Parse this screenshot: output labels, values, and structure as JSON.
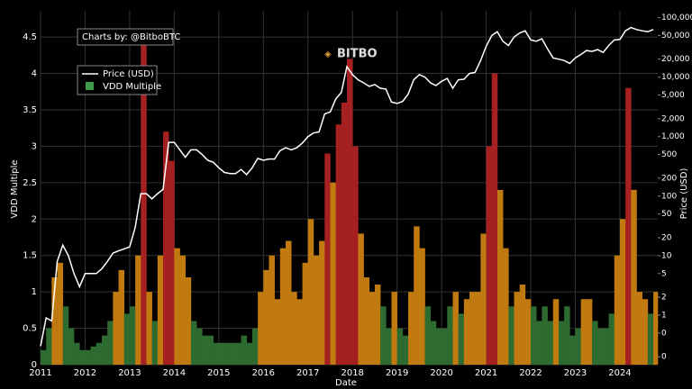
{
  "chart_data": {
    "type": "bar-line",
    "annotations": [
      "Charts by: @BitboBTC",
      "BITBO"
    ],
    "xlabel": "Date",
    "ylabel": "VDD Multiple",
    "y2label": "Price (USD)",
    "x": [
      2011,
      2011.125,
      2011.25,
      2011.375,
      2011.5,
      2011.625,
      2011.75,
      2011.875,
      2012,
      2012.125,
      2012.25,
      2012.375,
      2012.5,
      2012.625,
      2012.75,
      2012.875,
      2013,
      2013.125,
      2013.25,
      2013.375,
      2013.5,
      2013.625,
      2013.75,
      2013.875,
      2014,
      2014.125,
      2014.25,
      2014.375,
      2014.5,
      2014.625,
      2014.75,
      2014.875,
      2015,
      2015.125,
      2015.25,
      2015.375,
      2015.5,
      2015.625,
      2015.75,
      2015.875,
      2016,
      2016.125,
      2016.25,
      2016.375,
      2016.5,
      2016.625,
      2016.75,
      2016.875,
      2017,
      2017.125,
      2017.25,
      2017.375,
      2017.5,
      2017.625,
      2017.75,
      2017.875,
      2018,
      2018.125,
      2018.25,
      2018.375,
      2018.5,
      2018.625,
      2018.75,
      2018.875,
      2019,
      2019.125,
      2019.25,
      2019.375,
      2019.5,
      2019.625,
      2019.75,
      2019.875,
      2020,
      2020.125,
      2020.25,
      2020.375,
      2020.5,
      2020.625,
      2020.75,
      2020.875,
      2021,
      2021.125,
      2021.25,
      2021.375,
      2021.5,
      2021.625,
      2021.75,
      2021.875,
      2022,
      2022.125,
      2022.25,
      2022.375,
      2022.5,
      2022.625,
      2022.75,
      2022.875,
      2023,
      2023.125,
      2023.25,
      2023.375,
      2023.5,
      2023.625,
      2023.75,
      2023.875,
      2024,
      2024.125,
      2024.25,
      2024.375,
      2024.5,
      2024.625,
      2024.75
    ],
    "series": [
      {
        "name": "VDD Multiple",
        "color": "#3c9a48",
        "values": [
          0.2,
          0.5,
          1.2,
          1.4,
          0.8,
          0.5,
          0.3,
          0.2,
          0.2,
          0.25,
          0.3,
          0.4,
          0.6,
          1.0,
          1.3,
          0.7,
          0.8,
          1.5,
          4.6,
          1.0,
          0.6,
          1.5,
          3.2,
          2.8,
          1.6,
          1.5,
          1.2,
          0.6,
          0.5,
          0.4,
          0.4,
          0.3,
          0.3,
          0.3,
          0.3,
          0.3,
          0.4,
          0.3,
          0.5,
          1.0,
          1.3,
          1.5,
          0.9,
          1.6,
          1.7,
          1.0,
          0.9,
          1.4,
          2.0,
          1.5,
          1.7,
          2.9,
          2.5,
          3.3,
          3.6,
          4.2,
          3.0,
          1.8,
          1.2,
          1.0,
          1.1,
          0.8,
          0.5,
          1.0,
          0.5,
          0.4,
          1.0,
          1.9,
          1.6,
          0.8,
          0.6,
          0.5,
          0.5,
          0.8,
          1.0,
          0.7,
          0.9,
          1.0,
          1.0,
          1.8,
          3.0,
          4.0,
          2.4,
          1.6,
          0.8,
          1.0,
          1.1,
          0.9,
          0.8,
          0.6,
          0.8,
          0.6,
          0.9,
          0.6,
          0.8,
          0.4,
          0.5,
          0.9,
          0.9,
          0.6,
          0.5,
          0.5,
          0.7,
          1.5,
          2.0,
          3.8,
          2.4,
          1.0,
          0.9,
          0.7,
          1.0
        ],
        "colors": [
          "#2e6b30",
          "#2e6b30",
          "#c07a10",
          "#c07a10",
          "#2e6b30",
          "#2e6b30",
          "#2e6b30",
          "#2e6b30",
          "#2e6b30",
          "#2e6b30",
          "#2e6b30",
          "#2e6b30",
          "#2e6b30",
          "#c07a10",
          "#c07a10",
          "#2e6b30",
          "#2e6b30",
          "#c07a10",
          "#a52020",
          "#c07a10",
          "#2e6b30",
          "#c07a10",
          "#a52020",
          "#a52020",
          "#c07a10",
          "#c07a10",
          "#c07a10",
          "#2e6b30",
          "#2e6b30",
          "#2e6b30",
          "#2e6b30",
          "#2e6b30",
          "#2e6b30",
          "#2e6b30",
          "#2e6b30",
          "#2e6b30",
          "#2e6b30",
          "#2e6b30",
          "#2e6b30",
          "#c07a10",
          "#c07a10",
          "#c07a10",
          "#c07a10",
          "#c07a10",
          "#c07a10",
          "#c07a10",
          "#c07a10",
          "#c07a10",
          "#c07a10",
          "#c07a10",
          "#c07a10",
          "#a52020",
          "#c07a10",
          "#a52020",
          "#a52020",
          "#a52020",
          "#a52020",
          "#c07a10",
          "#c07a10",
          "#c07a10",
          "#c07a10",
          "#2e6b30",
          "#2e6b30",
          "#c07a10",
          "#2e6b30",
          "#2e6b30",
          "#c07a10",
          "#c07a10",
          "#c07a10",
          "#2e6b30",
          "#2e6b30",
          "#2e6b30",
          "#2e6b30",
          "#2e6b30",
          "#c07a10",
          "#2e6b30",
          "#c07a10",
          "#c07a10",
          "#c07a10",
          "#c07a10",
          "#a52020",
          "#a52020",
          "#c07a10",
          "#c07a10",
          "#2e6b30",
          "#c07a10",
          "#c07a10",
          "#c07a10",
          "#2e6b30",
          "#2e6b30",
          "#2e6b30",
          "#2e6b30",
          "#c07a10",
          "#2e6b30",
          "#2e6b30",
          "#2e6b30",
          "#2e6b30",
          "#c07a10",
          "#c07a10",
          "#2e6b30",
          "#2e6b30",
          "#2e6b30",
          "#2e6b30",
          "#c07a10",
          "#c07a10",
          "#a52020",
          "#c07a10",
          "#c07a10",
          "#c07a10",
          "#2e6b30",
          "#c07a10"
        ]
      },
      {
        "name": "Price (USD)",
        "color": "#ffffff",
        "axis": "y2",
        "values": [
          0.3,
          0.9,
          0.8,
          8,
          15,
          10,
          5,
          3,
          5,
          5,
          5,
          6,
          8,
          11,
          12,
          13,
          14,
          30,
          110,
          110,
          90,
          110,
          130,
          800,
          800,
          600,
          450,
          600,
          600,
          500,
          400,
          370,
          300,
          250,
          240,
          240,
          280,
          230,
          300,
          430,
          400,
          420,
          420,
          580,
          650,
          600,
          650,
          780,
          1000,
          1150,
          1200,
          2400,
          2600,
          4300,
          5500,
          15000,
          11000,
          9000,
          8000,
          7000,
          7500,
          6500,
          6300,
          3800,
          3600,
          3900,
          5200,
          9000,
          11000,
          10000,
          8000,
          7200,
          8500,
          9500,
          6500,
          9000,
          9200,
          11500,
          12000,
          19000,
          33000,
          50000,
          58000,
          40000,
          34000,
          47000,
          55000,
          60000,
          42000,
          40000,
          44000,
          30000,
          21000,
          20000,
          19000,
          17000,
          21000,
          24000,
          28000,
          27000,
          29000,
          26000,
          34000,
          42000,
          43000,
          60000,
          68000,
          63000,
          60000,
          58000,
          63000
        ]
      }
    ],
    "xlim": [
      2011,
      2024.85
    ],
    "xticks": [
      2011,
      2012,
      2013,
      2014,
      2015,
      2016,
      2017,
      2018,
      2019,
      2020,
      2021,
      2022,
      2023,
      2024
    ],
    "ylim": [
      0,
      4.86
    ],
    "yticks": [
      0,
      0.5,
      1,
      1.5,
      2,
      2.5,
      3,
      3.5,
      4,
      4.5
    ],
    "y2lim": [
      0.147,
      130000
    ],
    "y2log": true,
    "y2ticks": [
      {
        "value": 0.2,
        "label": "0"
      },
      {
        "value": 0.5,
        "label": "0"
      },
      1,
      2,
      5,
      10,
      20,
      50,
      100,
      200,
      500,
      {
        "value": 1000,
        "label": "1,000"
      },
      {
        "value": 2000,
        "label": "2,000"
      },
      {
        "value": 5000,
        "label": "5,000"
      },
      {
        "value": 10000,
        "label": "10,000"
      },
      {
        "value": 20000,
        "label": "20,000"
      },
      {
        "value": 50000,
        "label": "50,000"
      },
      {
        "value": 100000,
        "label": "100,000"
      }
    ],
    "grid": true
  }
}
